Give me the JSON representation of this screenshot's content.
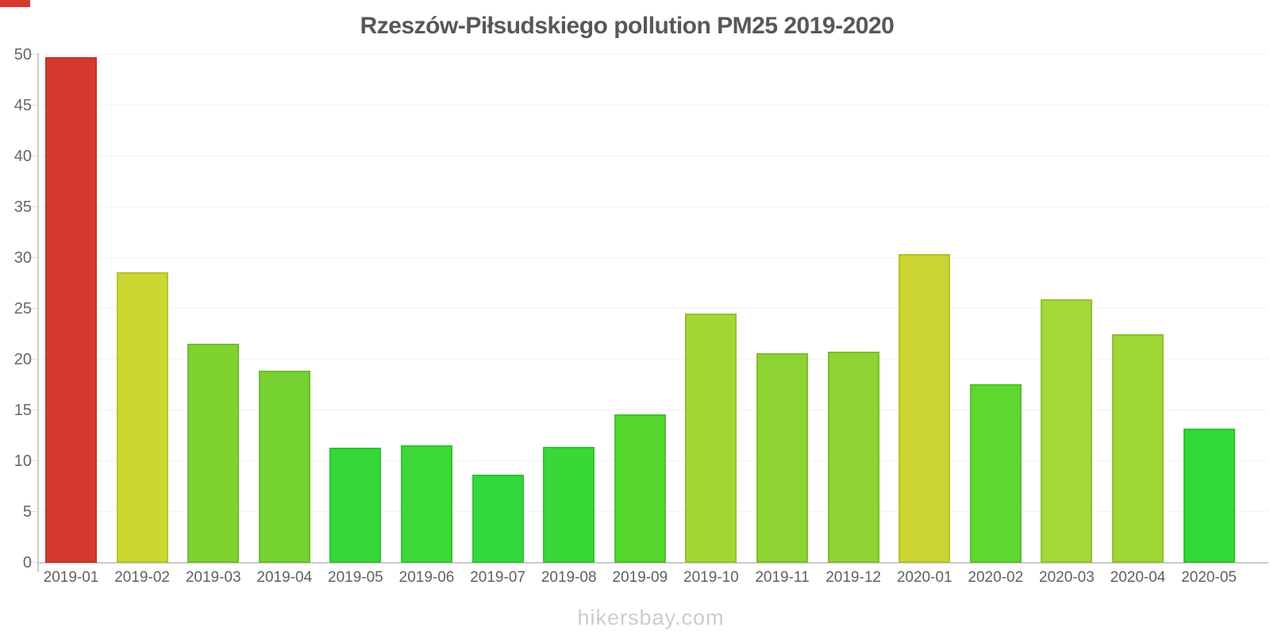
{
  "chart_data": {
    "type": "bar",
    "title": "Rzeszów-Piłsudskiego pollution PM25 2019-2020",
    "xlabel": "",
    "ylabel": "",
    "ylim": [
      0,
      50
    ],
    "yticks": [
      0,
      5,
      10,
      15,
      20,
      25,
      30,
      35,
      40,
      45,
      50
    ],
    "grid": "horizontal-light",
    "legend": "none",
    "categories": [
      "2019-01",
      "2019-02",
      "2019-03",
      "2019-04",
      "2019-05",
      "2019-06",
      "2019-07",
      "2019-08",
      "2019-09",
      "2019-10",
      "2019-11",
      "2019-12",
      "2020-01",
      "2020-02",
      "2020-03",
      "2020-04",
      "2020-05"
    ],
    "values": [
      49.8,
      28.6,
      21.6,
      18.9,
      11.3,
      11.6,
      8.7,
      11.4,
      14.6,
      24.5,
      20.6,
      20.8,
      30.4,
      17.6,
      25.9,
      22.5,
      13.2
    ],
    "bar_colors": [
      "#d6392f",
      "#cbd832",
      "#80d231",
      "#76d231",
      "#36d838",
      "#3bd837",
      "#33d93a",
      "#38d837",
      "#55d72f",
      "#a3d834",
      "#8dd333",
      "#8ed433",
      "#cdd532",
      "#5ed72f",
      "#a4d836",
      "#9ed735",
      "#33d936"
    ]
  },
  "watermark": "hikersbay.com",
  "colors": {
    "title": "#58585a",
    "axis_line": "#cbcbcb",
    "gridline": "#f2f2f2",
    "y_label": "#666769",
    "x_label": "#5f6062",
    "watermark": "#cccccc",
    "corner_mark": "#d6392f"
  }
}
